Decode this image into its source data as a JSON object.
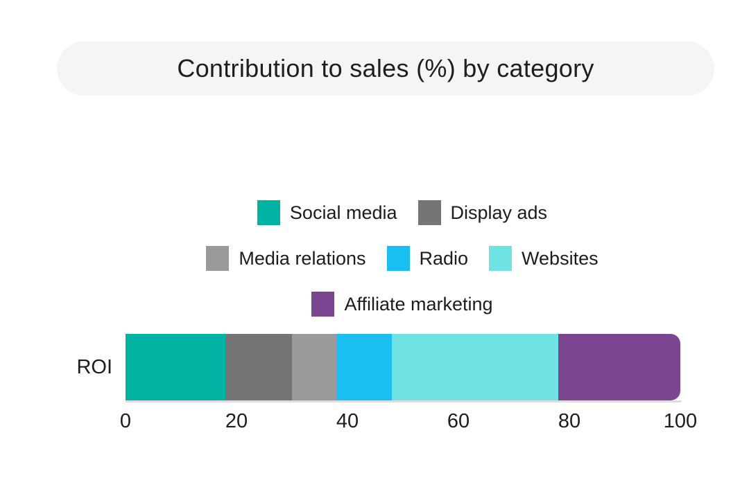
{
  "title": "Contribution to sales (%) by category",
  "colors": {
    "background": "#ffffff",
    "title_panel": "#f5f4f6",
    "text": "#1c1c1c",
    "baseline": "#dddde0"
  },
  "chart_data": {
    "type": "bar",
    "stacked": true,
    "orientation": "horizontal",
    "title": "Contribution to sales (%) by category",
    "categories": [
      "ROI"
    ],
    "series": [
      {
        "name": "Social media",
        "color": "#00b3a3",
        "values": [
          18
        ]
      },
      {
        "name": "Display ads",
        "color": "#747577",
        "values": [
          12
        ]
      },
      {
        "name": "Media relations",
        "color": "#9a9a9c",
        "values": [
          8
        ]
      },
      {
        "name": "Radio",
        "color": "#18bff0",
        "values": [
          10
        ]
      },
      {
        "name": "Websites",
        "color": "#6fe3e4",
        "values": [
          30
        ]
      },
      {
        "name": "Affiliate marketing",
        "color": "#7b4590",
        "values": [
          22
        ]
      }
    ],
    "xlabel": "",
    "ylabel": "",
    "xlim": [
      0,
      100
    ],
    "xticks": [
      0,
      20,
      40,
      60,
      80,
      100
    ],
    "grid": false,
    "legend_position": "top-center",
    "legend_rows": [
      [
        "Social media",
        "Display ads"
      ],
      [
        "Media relations",
        "Radio",
        "Websites"
      ],
      [
        "Affiliate marketing"
      ]
    ]
  }
}
